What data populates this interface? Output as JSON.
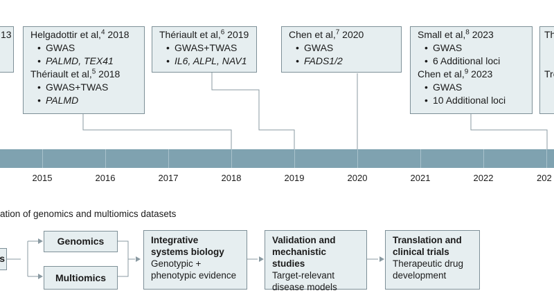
{
  "timeline": {
    "boxes": [
      {
        "id": "partial-left",
        "entries": [
          {
            "author": "",
            "sup": "",
            "year": "13",
            "items": []
          }
        ]
      },
      {
        "id": "box-2018",
        "entries": [
          {
            "author": "Helgadottir et al,",
            "sup": "4",
            "year": "2018",
            "items": [
              {
                "text": "GWAS",
                "italic": false
              },
              {
                "text": "PALMD, TEX41",
                "italic": true
              }
            ]
          },
          {
            "author": "Thériault et al,",
            "sup": "5",
            "year": "2018",
            "items": [
              {
                "text": "GWAS+TWAS",
                "italic": false
              },
              {
                "text": "PALMD",
                "italic": true
              }
            ]
          }
        ]
      },
      {
        "id": "box-2019",
        "entries": [
          {
            "author": "Thériault et al,",
            "sup": "6",
            "year": "2019",
            "items": [
              {
                "text": "GWAS+TWAS",
                "italic": false
              },
              {
                "text": "IL6, ALPL, NAV1",
                "italic": true
              }
            ]
          }
        ]
      },
      {
        "id": "box-2020",
        "entries": [
          {
            "author": "Chen et al,",
            "sup": "7",
            "year": "2020",
            "items": [
              {
                "text": "GWAS",
                "italic": false
              },
              {
                "text": "FADS1/2",
                "italic": true
              }
            ]
          }
        ]
      },
      {
        "id": "box-2023",
        "entries": [
          {
            "author": "Small et al,",
            "sup": "8",
            "year": "2023",
            "items": [
              {
                "text": "GWAS",
                "italic": false
              },
              {
                "text": "6 Additional loci",
                "italic": false
              }
            ]
          },
          {
            "author": "Chen et al,",
            "sup": "9",
            "year": "2023",
            "items": [
              {
                "text": "GWAS",
                "italic": false
              },
              {
                "text": "10 Additional loci",
                "italic": false
              }
            ]
          }
        ]
      },
      {
        "id": "partial-right",
        "entries": [
          {
            "author": "Th",
            "sup": "",
            "year": "",
            "items": []
          },
          {
            "author": "Tre",
            "sup": "",
            "year": "",
            "items": []
          }
        ]
      }
    ],
    "years": [
      "2015",
      "2016",
      "2017",
      "2018",
      "2019",
      "2020",
      "2021",
      "2022",
      "202"
    ]
  },
  "section_title": "ation of genomics and multiomics datasets",
  "flow": {
    "partial_left": "s",
    "genomics": "Genomics",
    "multiomics": "Multiomics",
    "steps": [
      {
        "title_lines": [
          "Integrative",
          "systems biology"
        ],
        "desc_lines": [
          "Genotypic +",
          "phenotypic evidence"
        ]
      },
      {
        "title_lines": [
          "Validation and",
          "mechanistic studies"
        ],
        "desc_lines": [
          "Target-relevant",
          "disease models"
        ]
      },
      {
        "title_lines": [
          "Translation and",
          "clinical trials"
        ],
        "desc_lines": [
          "Therapeutic drug",
          "development"
        ]
      }
    ]
  },
  "colors": {
    "axis": "#7fa2b0",
    "box_fill": "#e6eef0",
    "box_border": "#7d8f97",
    "connector": "#8a9aa2"
  }
}
